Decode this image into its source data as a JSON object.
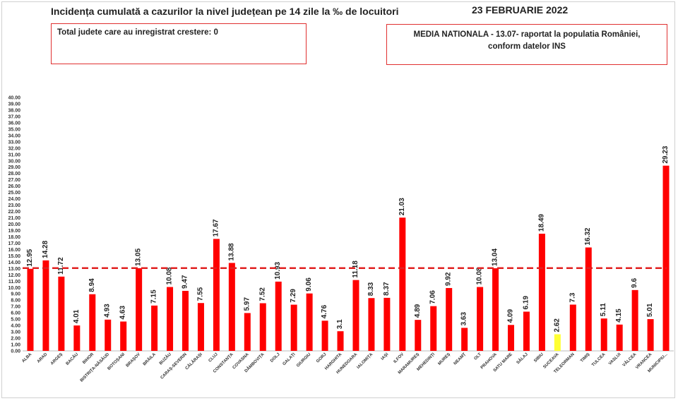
{
  "header": {
    "title": "Incidența cumulată a cazurilor la nivel județean pe 14 zile la ‰ de locuitori",
    "date": "23 FEBRUARIE 2022"
  },
  "info_left": {
    "text": "Total judete care au inregistrat crestere: 0"
  },
  "info_right": {
    "line1": "MEDIA NATIONALA - 13.07-  raportat la populatia României,",
    "line2": "conform datelor INS"
  },
  "colors": {
    "bar": "#ff0000",
    "highlight_bar": "#ffff33",
    "reference_line": "#e02020",
    "box_border": "#e03030"
  },
  "chart_data": {
    "type": "bar",
    "title": "Incidența cumulată a cazurilor la nivel județean pe 14 zile la ‰ de locuitori",
    "xlabel": "",
    "ylabel": "",
    "ylim": [
      0,
      40
    ],
    "ytick_step": 1,
    "grid": false,
    "reference_line": {
      "value": 13.07,
      "style": "dashed"
    },
    "highlight_category": "SUCEAVA",
    "categories": [
      "ALBA",
      "ARAD",
      "ARGEȘ",
      "BACĂU",
      "BIHOR",
      "BISTRIȚA-NĂSĂUD",
      "BOTOȘANI",
      "BRAȘOV",
      "BRĂILA",
      "BUZĂU",
      "CARAȘ-SEVERIN",
      "CĂLĂRAȘI",
      "CLUJ",
      "CONSTANȚA",
      "COVASNA",
      "DÂMBOVIȚA",
      "DOLJ",
      "GALAȚI",
      "GIURGIU",
      "GORJ",
      "HARGHITA",
      "HUNEDOARA",
      "IALOMIȚA",
      "IAȘI",
      "ILFOV",
      "MARAMUREȘ",
      "MEHEDINȚI",
      "MUREȘ",
      "NEAMȚ",
      "OLT",
      "PRAHOVA",
      "SATU MARE",
      "SĂLAJ",
      "SIBIU",
      "SUCEAVA",
      "TELEORMAN",
      "TIMIȘ",
      "TULCEA",
      "VASLUI",
      "VÂLCEA",
      "VRANCEA",
      "MUNICIPIU..."
    ],
    "value_labels": [
      "12.95",
      "14.28",
      "11.72",
      "4.01",
      "8.94",
      "4.93",
      "4.63",
      "13.05",
      "7.15",
      "10.08",
      "9.47",
      "7.55",
      "17.67",
      "13.88",
      "5.97",
      "7.52",
      "10.93",
      "7.29",
      "9.06",
      "4.76",
      "3.1",
      "11.18",
      "8.33",
      "8.37",
      "21.03",
      "4.89",
      "7.06",
      "9.92",
      "3.63",
      "10.08",
      "13.04",
      "4.09",
      "6.19",
      "18.49",
      "2.62",
      "7.3",
      "16.32",
      "5.11",
      "4.15",
      "9.6",
      "5.01",
      "29.23"
    ],
    "values": [
      12.95,
      14.28,
      11.72,
      4.01,
      8.94,
      4.93,
      4.63,
      13.05,
      7.15,
      10.08,
      9.47,
      7.55,
      17.67,
      13.88,
      5.97,
      7.52,
      10.93,
      7.29,
      9.06,
      4.76,
      3.1,
      11.18,
      8.33,
      8.37,
      21.03,
      4.89,
      7.06,
      9.92,
      3.63,
      10.08,
      13.04,
      4.09,
      6.19,
      18.49,
      2.62,
      7.3,
      16.32,
      5.11,
      4.15,
      9.6,
      5.01,
      29.23
    ]
  }
}
